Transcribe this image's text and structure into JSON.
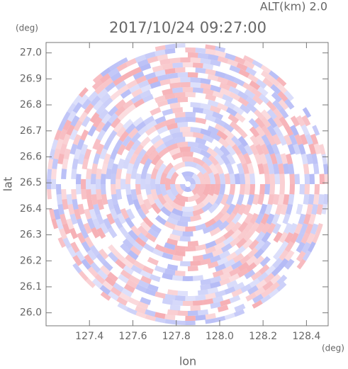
{
  "chart_data": {
    "type": "radar-ppi",
    "title": "2017/10/24 09:27:00",
    "annotation": "ALT(km) 2.0",
    "x_label": "lon",
    "x_unit": "(deg)",
    "y_label": "lat",
    "y_unit": "(deg)",
    "xlim": [
      127.2,
      128.5
    ],
    "ylim": [
      25.95,
      27.04
    ],
    "xticks": [
      127.4,
      127.6,
      127.8,
      {
        "value": 128,
        "label": "128.0"
      },
      128.2,
      128.4
    ],
    "yticks": [
      {
        "value": 26,
        "label": "26.0"
      },
      26.1,
      26.2,
      26.3,
      26.4,
      26.5,
      26.6,
      26.7,
      26.8,
      26.9,
      {
        "value": 27,
        "label": "27.0"
      }
    ]
  }
}
